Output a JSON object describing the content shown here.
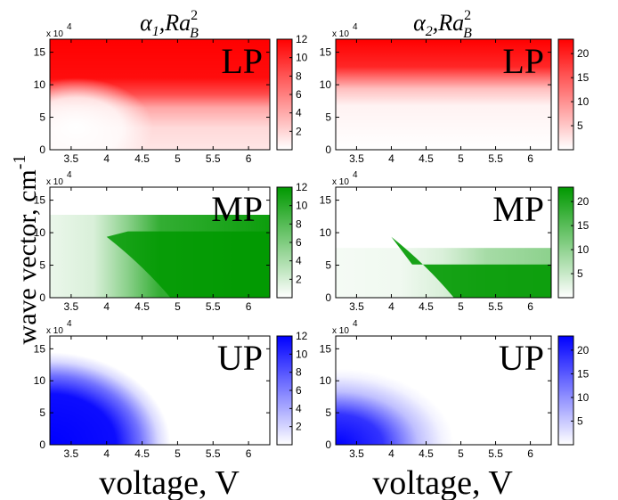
{
  "chart_data": {
    "type": "heatmap",
    "xlabel": "voltage, V",
    "ylabel": "wave vector, cm",
    "ylabel_exponent": "-1",
    "y_multiplier": "x 10",
    "y_multiplier_exponent": "4",
    "xlim": [
      3.2,
      6.3
    ],
    "ylim": [
      0,
      17
    ],
    "xticks": [
      "3.5",
      "4",
      "4.5",
      "5",
      "5.5",
      "6"
    ],
    "yticks": [
      "0",
      "5",
      "10",
      "15"
    ],
    "columns": [
      {
        "title_main": "α",
        "title_sub": "1",
        "title_rest": ",Ra",
        "title_sup": "2",
        "title_sub2": "B",
        "cbar_max": 12,
        "cbar_ticks": [
          "2",
          "4",
          "6",
          "8",
          "10",
          "12"
        ]
      },
      {
        "title_main": "α",
        "title_sub": "2",
        "title_rest": ",Ra",
        "title_sup": "2",
        "title_sub2": "B",
        "cbar_max": 23,
        "cbar_ticks": [
          "5",
          "10",
          "15",
          "20"
        ]
      }
    ],
    "rows": [
      {
        "label": "LP",
        "color": "#ff0000"
      },
      {
        "label": "MP",
        "color": "#009900"
      },
      {
        "label": "UP",
        "color": "#0000ff"
      }
    ]
  }
}
